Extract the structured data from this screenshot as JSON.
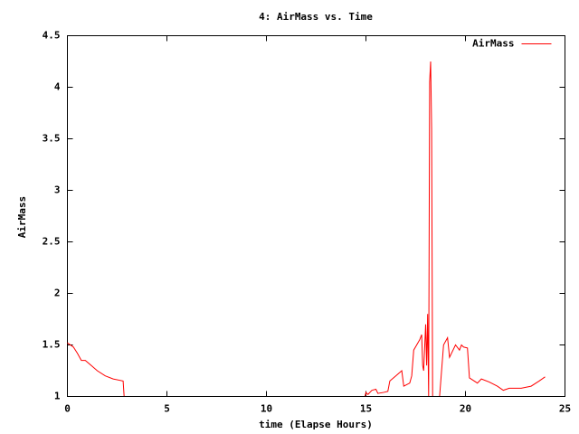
{
  "chart_data": {
    "type": "line",
    "title": "4: AirMass vs. Time",
    "x_label": "time (Elapse Hours)",
    "y_label": "AirMass",
    "x": [
      0,
      0.3,
      0.5,
      0.7,
      0.9,
      1.2,
      1.5,
      1.9,
      2.3,
      2.8,
      2.85,
      14.9,
      14.95,
      15.0,
      15.1,
      15.3,
      15.5,
      15.6,
      15.9,
      16.1,
      16.2,
      16.5,
      16.8,
      16.9,
      17.2,
      17.3,
      17.4,
      17.7,
      17.8,
      17.85,
      17.9,
      18.0,
      18.05,
      18.1,
      18.15,
      18.2,
      18.25,
      18.3,
      18.35,
      18.7,
      18.9,
      19.1,
      19.2,
      19.5,
      19.7,
      19.8,
      19.9,
      20.1,
      20.2,
      20.6,
      20.8,
      21.2,
      21.6,
      21.9,
      22.2,
      22.8,
      23.3,
      23.7,
      24.0
    ],
    "series": [
      {
        "name": "AirMass",
        "color": "#ff0000",
        "values": [
          1.52,
          1.48,
          1.42,
          1.35,
          1.35,
          1.3,
          1.25,
          1.2,
          1.17,
          1.15,
          1.0,
          null,
          1.0,
          1.04,
          1.02,
          1.06,
          1.07,
          1.03,
          1.04,
          1.05,
          1.15,
          1.2,
          1.25,
          1.1,
          1.13,
          1.2,
          1.45,
          1.55,
          1.6,
          1.3,
          1.25,
          1.7,
          1.3,
          1.8,
          1.0,
          4.05,
          4.25,
          3.6,
          1.0,
          1.0,
          1.5,
          1.57,
          1.38,
          1.5,
          1.45,
          1.5,
          1.48,
          1.47,
          1.18,
          1.13,
          1.17,
          1.14,
          1.1,
          1.06,
          1.08,
          1.08,
          1.1,
          1.15,
          1.19
        ]
      }
    ],
    "xlim": [
      0,
      25
    ],
    "xticks": [
      0,
      5,
      10,
      15,
      20,
      25
    ],
    "ylim": [
      1,
      4.5
    ],
    "yticks": [
      1,
      1.5,
      2,
      2.5,
      3,
      3.5,
      4,
      4.5
    ],
    "legend": "top-right"
  }
}
